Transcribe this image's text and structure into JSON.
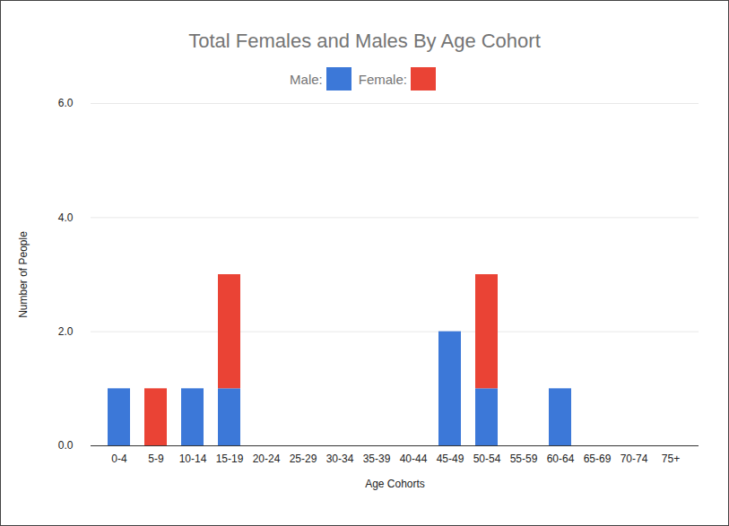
{
  "chart_data": {
    "type": "bar",
    "title": "Total Females and Males By Age Cohort",
    "x_label": "Age Cohorts",
    "y_label": "Number of People",
    "categories": [
      "0-4",
      "5-9",
      "10-14",
      "15-19",
      "20-24",
      "25-29",
      "30-34",
      "35-39",
      "40-44",
      "45-49",
      "50-54",
      "55-59",
      "60-64",
      "65-69",
      "70-74",
      "75+"
    ],
    "series": [
      {
        "name": "Male:",
        "color": "#3c78d8",
        "values": [
          1,
          0,
          1,
          1,
          0,
          0,
          0,
          0,
          0,
          2,
          1,
          0,
          1,
          0,
          0,
          0
        ]
      },
      {
        "name": "Female:",
        "color": "#ea4335",
        "values": [
          0,
          1,
          0,
          2,
          0,
          0,
          0,
          0,
          0,
          0,
          2,
          0,
          0,
          0,
          0,
          0
        ]
      }
    ],
    "ylim": [
      0,
      6
    ],
    "yticks": [
      0,
      2,
      4,
      6
    ],
    "grid": true,
    "stacked": true,
    "legend": "top"
  }
}
